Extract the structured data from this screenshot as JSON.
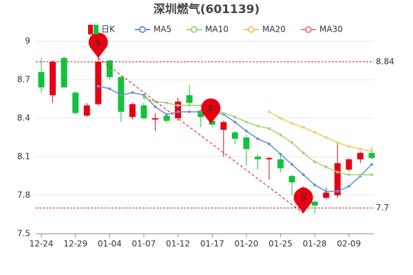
{
  "chart_data": {
    "type": "candlestick",
    "title": "深圳燃气(601139)",
    "categories": [
      "12-24",
      null,
      null,
      "12-29",
      null,
      null,
      "01-04",
      null,
      null,
      "01-07",
      null,
      null,
      "01-12",
      null,
      null,
      "01-17",
      null,
      null,
      "01-20",
      null,
      null,
      "01-25",
      null,
      null,
      "01-28",
      null,
      null,
      "02-09",
      null,
      null
    ],
    "candle": {
      "name": "日K",
      "up_color": "#e60012",
      "down_color": "#13c23b",
      "open": [
        8.76,
        8.58,
        8.87,
        8.6,
        8.42,
        8.51,
        8.85,
        8.72,
        8.41,
        8.5,
        8.39,
        8.42,
        8.4,
        8.58,
        8.46,
        8.38,
        8.31,
        8.29,
        8.25,
        8.1,
        8.08,
        8.08,
        7.95,
        7.84,
        7.75,
        7.78,
        7.8,
        8.0,
        8.08,
        8.13
      ],
      "high": [
        8.87,
        8.85,
        8.88,
        8.61,
        8.52,
        8.87,
        8.86,
        8.73,
        8.52,
        8.52,
        8.44,
        8.43,
        8.56,
        8.66,
        8.47,
        8.4,
        8.38,
        8.3,
        8.27,
        8.12,
        8.1,
        8.12,
        7.96,
        7.87,
        7.76,
        7.86,
        8.2,
        8.09,
        8.14,
        8.17
      ],
      "low": [
        8.6,
        8.52,
        8.64,
        8.43,
        8.41,
        8.5,
        8.7,
        8.37,
        8.39,
        8.39,
        8.3,
        8.36,
        8.38,
        8.5,
        8.33,
        8.33,
        8.1,
        8.2,
        8.03,
        8.0,
        7.92,
        7.98,
        7.8,
        7.66,
        7.66,
        7.77,
        7.78,
        7.99,
        8.05,
        8.08
      ],
      "close": [
        8.64,
        8.84,
        8.64,
        8.44,
        8.5,
        8.84,
        8.72,
        8.45,
        8.51,
        8.4,
        8.4,
        8.38,
        8.53,
        8.52,
        8.41,
        8.35,
        8.37,
        8.24,
        8.16,
        8.08,
        8.09,
        8.01,
        7.9,
        7.86,
        7.72,
        7.82,
        8.05,
        8.08,
        8.13,
        8.09
      ]
    },
    "series": [
      {
        "name": "MA5",
        "color": "#6e8fd6",
        "values": [
          null,
          null,
          null,
          null,
          null,
          8.65,
          8.63,
          8.58,
          8.6,
          8.58,
          8.49,
          8.43,
          8.45,
          8.45,
          8.45,
          8.45,
          8.43,
          8.37,
          8.3,
          8.24,
          8.2,
          8.12,
          8.04,
          7.96,
          7.88,
          7.83,
          7.83,
          7.87,
          7.95,
          8.04
        ]
      },
      {
        "name": "MA10",
        "color": "#9fd67a",
        "values": [
          null,
          null,
          null,
          null,
          null,
          null,
          null,
          null,
          null,
          8.56,
          8.53,
          8.52,
          8.5,
          8.5,
          8.5,
          8.47,
          8.44,
          8.41,
          8.37,
          8.34,
          8.32,
          8.27,
          8.21,
          8.13,
          8.06,
          8.02,
          7.98,
          7.96,
          7.96,
          7.96
        ]
      },
      {
        "name": "MA20",
        "color": "#f5c96b",
        "values": [
          null,
          null,
          null,
          null,
          null,
          null,
          null,
          null,
          null,
          null,
          null,
          null,
          null,
          null,
          null,
          null,
          null,
          null,
          null,
          null,
          8.45,
          8.4,
          8.36,
          8.33,
          8.29,
          8.25,
          8.21,
          8.18,
          8.16,
          8.14
        ]
      },
      {
        "name": "MA30",
        "color": "#f08080",
        "values": [
          null,
          null,
          null,
          null,
          null,
          null,
          null,
          null,
          null,
          null,
          null,
          null,
          null,
          null,
          null,
          null,
          null,
          null,
          null,
          null,
          null,
          null,
          null,
          null,
          null,
          null,
          null,
          null,
          null,
          null
        ]
      }
    ],
    "reference_lines": [
      8.84,
      7.7
    ],
    "annotations": [
      "9",
      "8",
      "8"
    ],
    "ylim": [
      7.5,
      9
    ],
    "yticks": [
      9,
      8.7,
      8.4,
      8.1,
      7.8,
      7.5
    ],
    "grid": true
  }
}
